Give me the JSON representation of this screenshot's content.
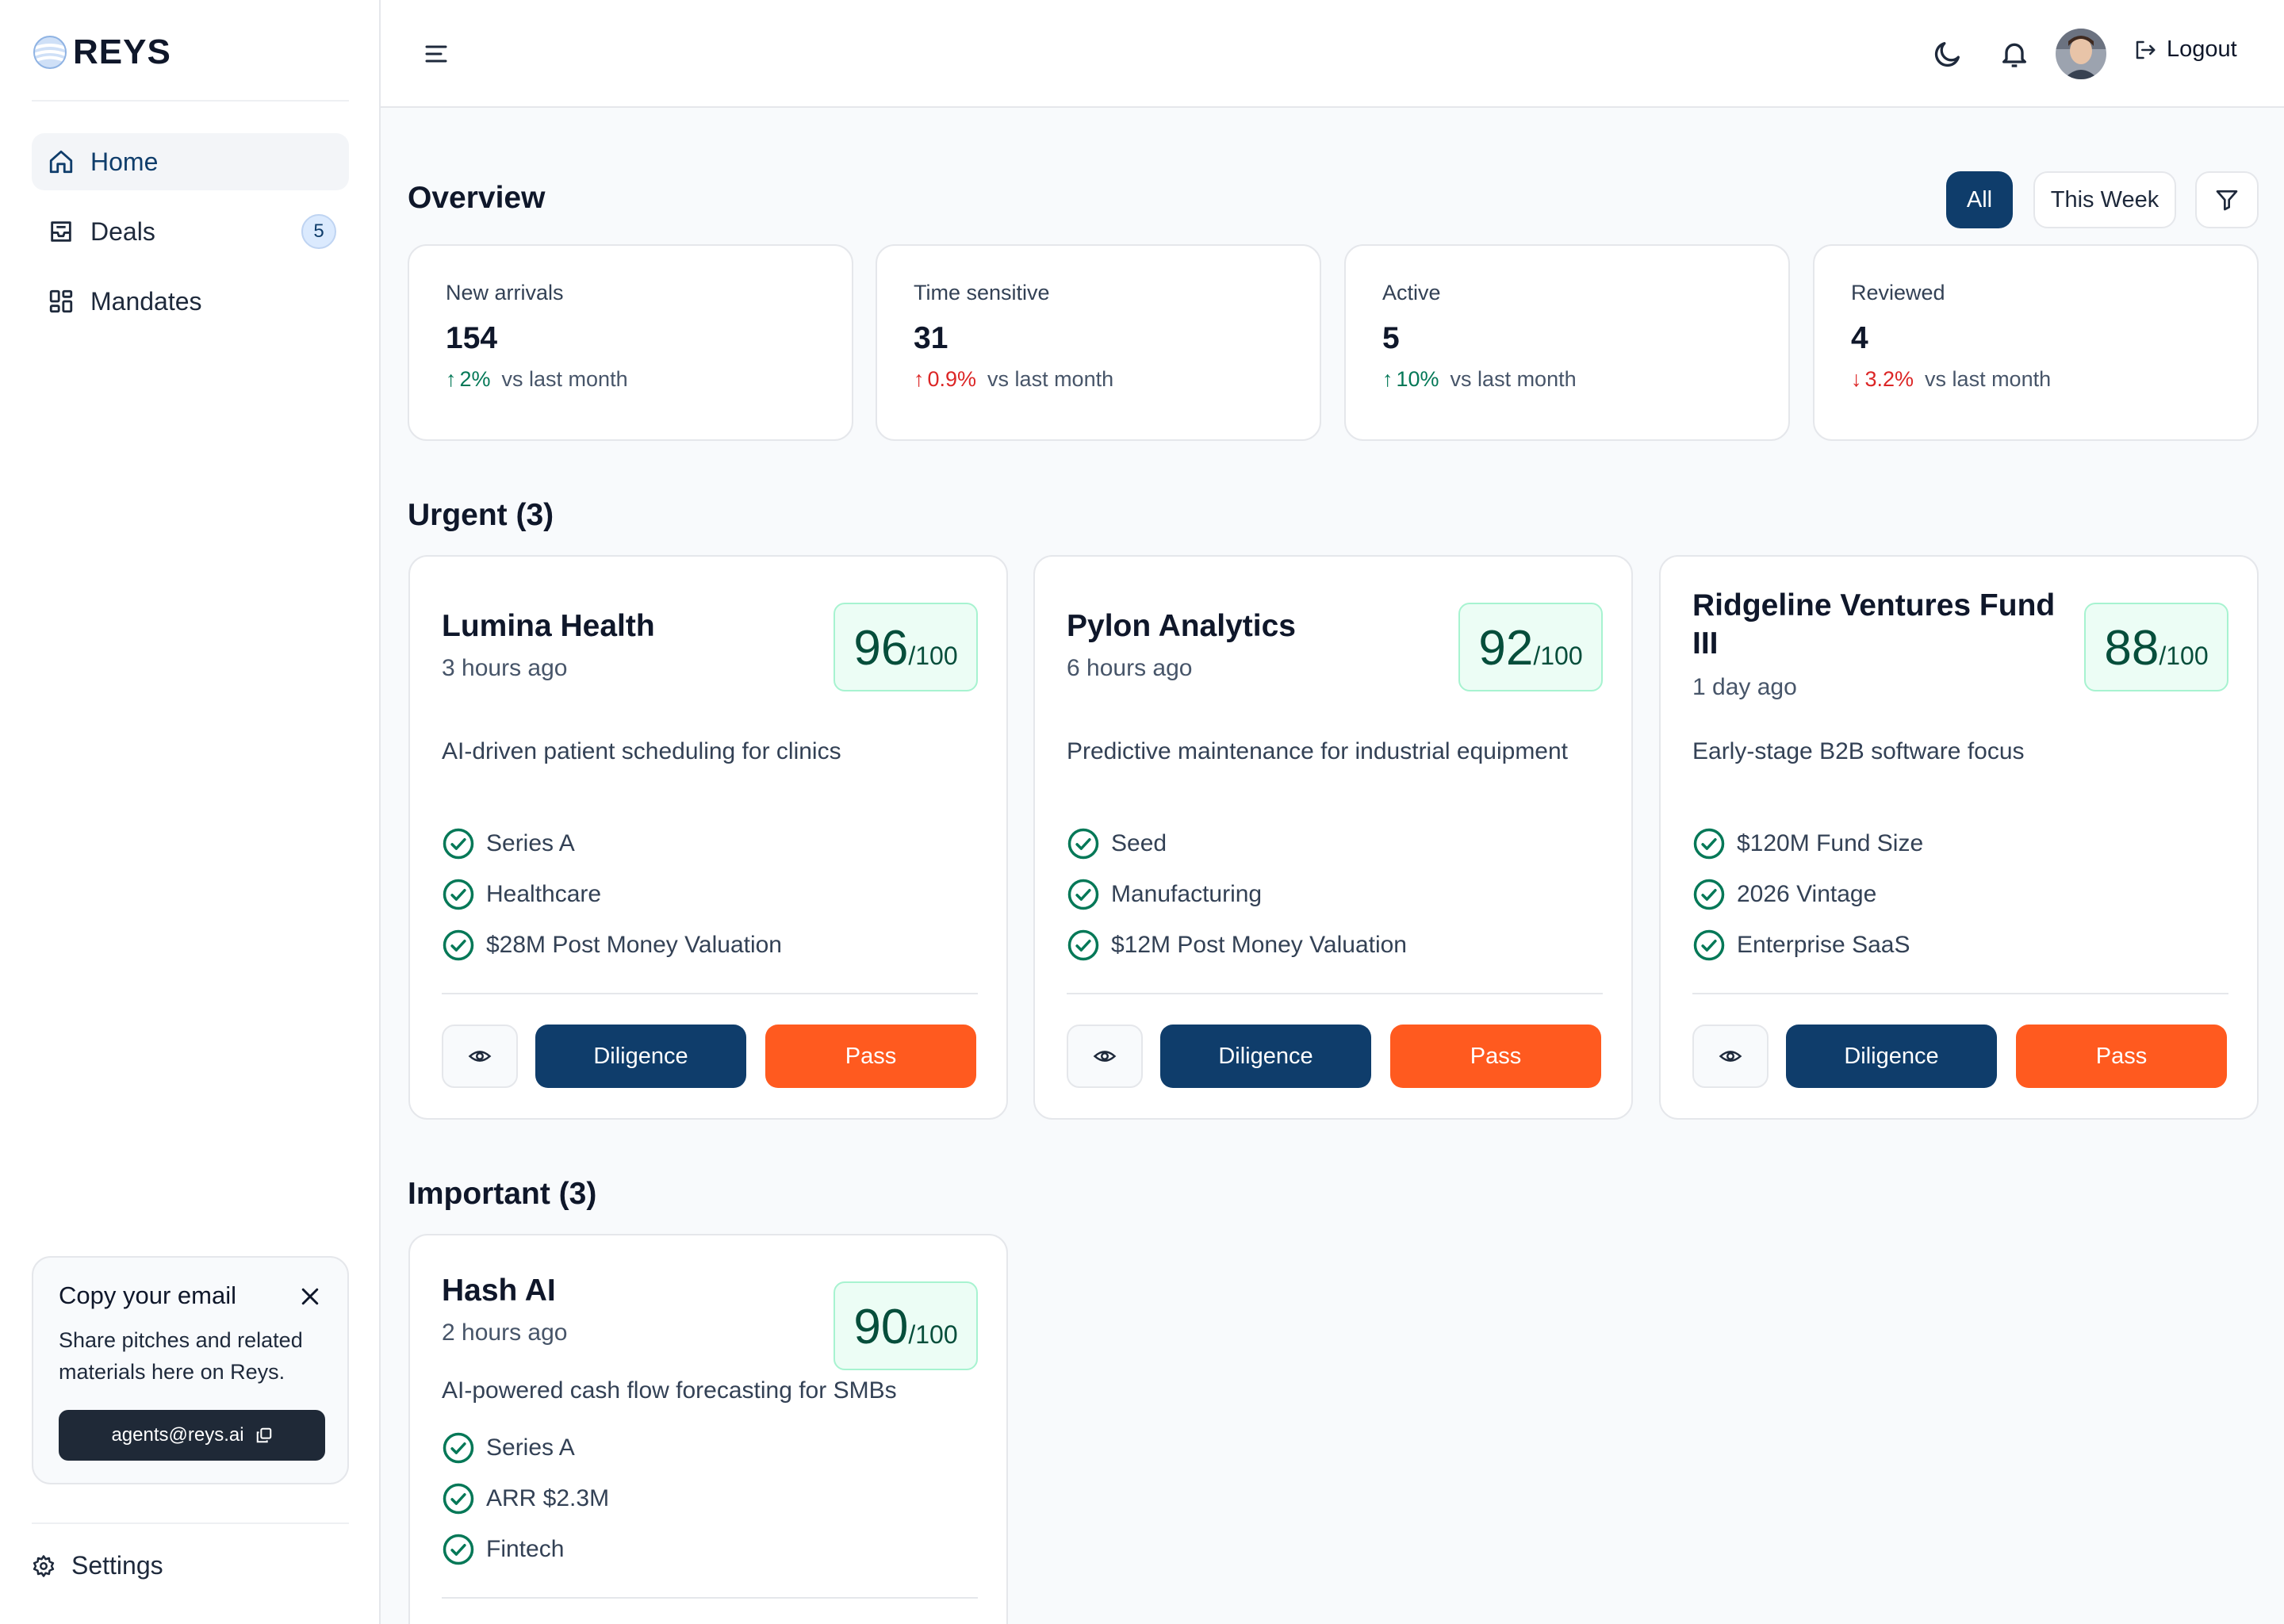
{
  "app": {
    "name": "REYS"
  },
  "sidebar": {
    "items": [
      {
        "label": "Home",
        "icon": "home-icon",
        "active": true
      },
      {
        "label": "Deals",
        "icon": "inbox-icon",
        "badge": "5"
      },
      {
        "label": "Mandates",
        "icon": "grid-icon"
      }
    ],
    "email_card": {
      "title": "Copy your email",
      "description": "Share pitches and related materials here on Reys.",
      "email": "agents@reys.ai"
    },
    "settings_label": "Settings"
  },
  "topbar": {
    "logout_label": "Logout"
  },
  "overview": {
    "title": "Overview",
    "filters": {
      "all": "All",
      "week": "This Week"
    },
    "stats": [
      {
        "label": "New arrivals",
        "value": "154",
        "arrow": "↑",
        "change": "2%",
        "direction": "up",
        "suffix": "vs last month"
      },
      {
        "label": "Time sensitive",
        "value": "31",
        "arrow": "↑",
        "change": "0.9%",
        "direction": "down",
        "suffix": "vs last month"
      },
      {
        "label": "Active",
        "value": "5",
        "arrow": "↑",
        "change": "10%",
        "direction": "up",
        "suffix": "vs last month"
      },
      {
        "label": "Reviewed",
        "value": "4",
        "arrow": "↓",
        "change": "3.2%",
        "direction": "down",
        "suffix": "vs last month"
      }
    ]
  },
  "urgent": {
    "title": "Urgent  (3)",
    "deals": [
      {
        "name": "Lumina Health",
        "time": "3 hours ago",
        "score": "96",
        "score_max": "/100",
        "description": "AI-driven patient scheduling for clinics",
        "tags": [
          "Series A",
          "Healthcare",
          "$28M Post Money Valuation"
        ]
      },
      {
        "name": "Pylon Analytics",
        "time": "6 hours ago",
        "score": "92",
        "score_max": "/100",
        "description": "Predictive maintenance for industrial equipment",
        "tags": [
          "Seed",
          "Manufacturing",
          "$12M Post Money Valuation"
        ]
      },
      {
        "name": "Ridgeline Ventures Fund III",
        "time": "1 day ago",
        "score": "88",
        "score_max": "/100",
        "description": "Early-stage B2B software focus",
        "tags": [
          "$120M Fund Size",
          "2026 Vintage",
          "Enterprise SaaS"
        ]
      }
    ]
  },
  "important": {
    "title": "Important  (3)",
    "deals": [
      {
        "name": "Hash AI",
        "time": "2 hours ago",
        "score": "90",
        "score_max": "/100",
        "description": "AI-powered cash flow forecasting for SMBs",
        "tags": [
          "Series A",
          "ARR $2.3M",
          "Fintech"
        ]
      }
    ]
  },
  "actions": {
    "diligence": "Diligence",
    "pass": "Pass"
  },
  "colors": {
    "primary": "#0f3d6b",
    "pass": "#ff5a1f",
    "up": "#047857",
    "down": "#dc2626",
    "score_bg": "#ecfdf5"
  }
}
